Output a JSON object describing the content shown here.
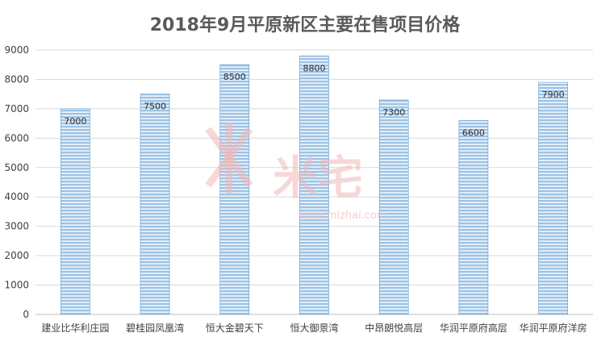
{
  "chart_data": {
    "type": "bar",
    "title": "2018年9月平原新区主要在售项目价格",
    "xlabel": "",
    "ylabel": "",
    "categories": [
      "建业比华利庄园",
      "碧桂园凤凰湾",
      "恒大金碧天下",
      "恒大御景湾",
      "中昂朗悦高层",
      "华润平原府高层",
      "华润平原府洋房"
    ],
    "values": [
      7000,
      7500,
      8500,
      8800,
      7300,
      6600,
      7900
    ],
    "data_labels": [
      "7000",
      "7500",
      "8500",
      "8800",
      "7300",
      "6600",
      "7900"
    ],
    "ylim": [
      0,
      9000
    ],
    "y_ticks": [
      0,
      1000,
      2000,
      3000,
      4000,
      5000,
      6000,
      7000,
      8000,
      9000
    ],
    "grid": true,
    "legend": "none",
    "colors": {
      "bar_fill": "#9dc3e6",
      "bar_stripe": "#ffffff",
      "bar_outline": "#5b9bd5",
      "grid": "#d9d9d9",
      "axis": "#bfbfbf"
    }
  },
  "watermark": {
    "text": "米宅",
    "url": "www.mizhai.com"
  }
}
